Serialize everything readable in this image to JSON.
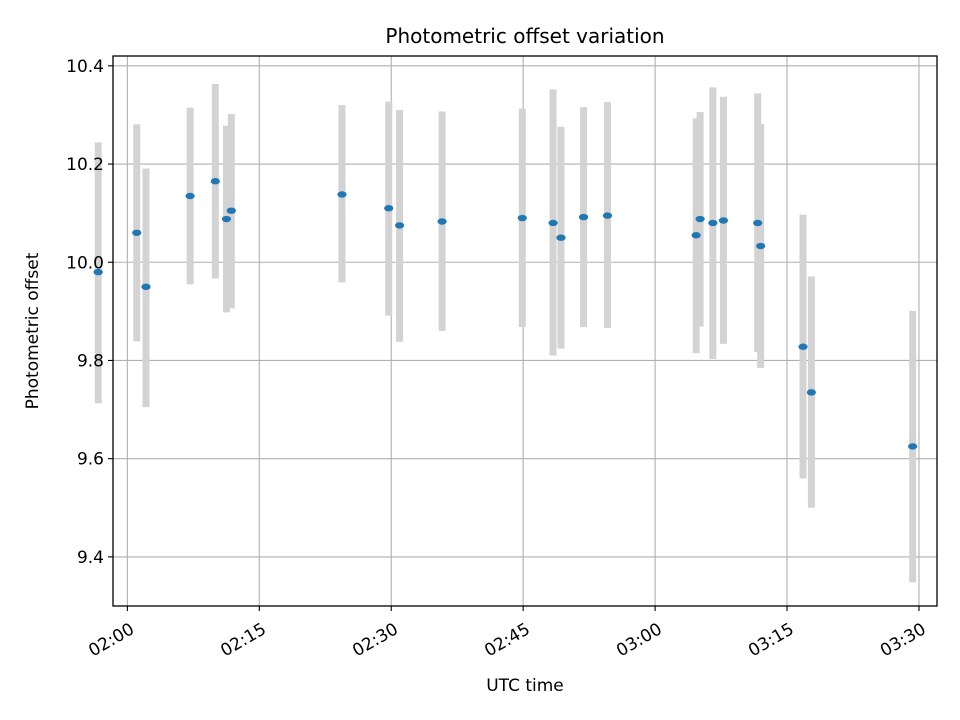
{
  "chart_data": {
    "type": "scatter",
    "title": "Photometric offset variation",
    "xlabel": "UTC time",
    "ylabel": "Photometric offset",
    "x_axis_kind": "time",
    "xlim": [
      "01:58:22",
      "03:32:03"
    ],
    "ylim": [
      9.3,
      10.42
    ],
    "grid": true,
    "x_ticks": [
      "02:00",
      "02:15",
      "02:30",
      "02:45",
      "03:00",
      "03:15",
      "03:30"
    ],
    "y_ticks": [
      "9.4",
      "9.6",
      "9.8",
      "10.0",
      "10.2",
      "10.4"
    ],
    "marker_color": "#1f77b4",
    "errorbar_color": "#d3d3d3",
    "points": [
      {
        "t": "01:56:41",
        "y": 9.98,
        "low": 9.713,
        "high": 10.244
      },
      {
        "t": "02:01:04",
        "y": 10.06,
        "low": 9.839,
        "high": 10.281
      },
      {
        "t": "02:02:07",
        "y": 9.95,
        "low": 9.705,
        "high": 10.191
      },
      {
        "t": "02:07:08",
        "y": 10.135,
        "low": 9.955,
        "high": 10.315
      },
      {
        "t": "02:10:00",
        "y": 10.165,
        "low": 9.967,
        "high": 10.363
      },
      {
        "t": "02:11:16",
        "y": 10.088,
        "low": 9.898,
        "high": 10.278
      },
      {
        "t": "02:11:49",
        "y": 10.105,
        "low": 9.906,
        "high": 10.302
      },
      {
        "t": "02:24:24",
        "y": 10.138,
        "low": 9.959,
        "high": 10.32
      },
      {
        "t": "02:29:43",
        "y": 10.11,
        "low": 9.891,
        "high": 10.327
      },
      {
        "t": "02:30:57",
        "y": 10.075,
        "low": 9.838,
        "high": 10.31
      },
      {
        "t": "02:35:47",
        "y": 10.083,
        "low": 9.86,
        "high": 10.307
      },
      {
        "t": "02:44:54",
        "y": 10.09,
        "low": 9.868,
        "high": 10.313
      },
      {
        "t": "02:48:24",
        "y": 10.08,
        "low": 9.81,
        "high": 10.352
      },
      {
        "t": "02:49:18",
        "y": 10.05,
        "low": 9.824,
        "high": 10.276
      },
      {
        "t": "02:51:52",
        "y": 10.092,
        "low": 9.868,
        "high": 10.316
      },
      {
        "t": "02:54:35",
        "y": 10.095,
        "low": 9.866,
        "high": 10.326
      },
      {
        "t": "03:04:40",
        "y": 10.055,
        "low": 9.815,
        "high": 10.293
      },
      {
        "t": "03:05:07",
        "y": 10.088,
        "low": 9.869,
        "high": 10.306
      },
      {
        "t": "03:06:34",
        "y": 10.08,
        "low": 9.803,
        "high": 10.356
      },
      {
        "t": "03:07:46",
        "y": 10.085,
        "low": 9.834,
        "high": 10.337
      },
      {
        "t": "03:11:40",
        "y": 10.08,
        "low": 9.817,
        "high": 10.344
      },
      {
        "t": "03:12:00",
        "y": 10.033,
        "low": 9.785,
        "high": 10.282
      },
      {
        "t": "03:16:49",
        "y": 9.828,
        "low": 9.56,
        "high": 10.097
      },
      {
        "t": "03:17:46",
        "y": 9.735,
        "low": 9.5,
        "high": 9.971
      },
      {
        "t": "03:29:17",
        "y": 9.625,
        "low": 9.348,
        "high": 9.901
      }
    ]
  }
}
